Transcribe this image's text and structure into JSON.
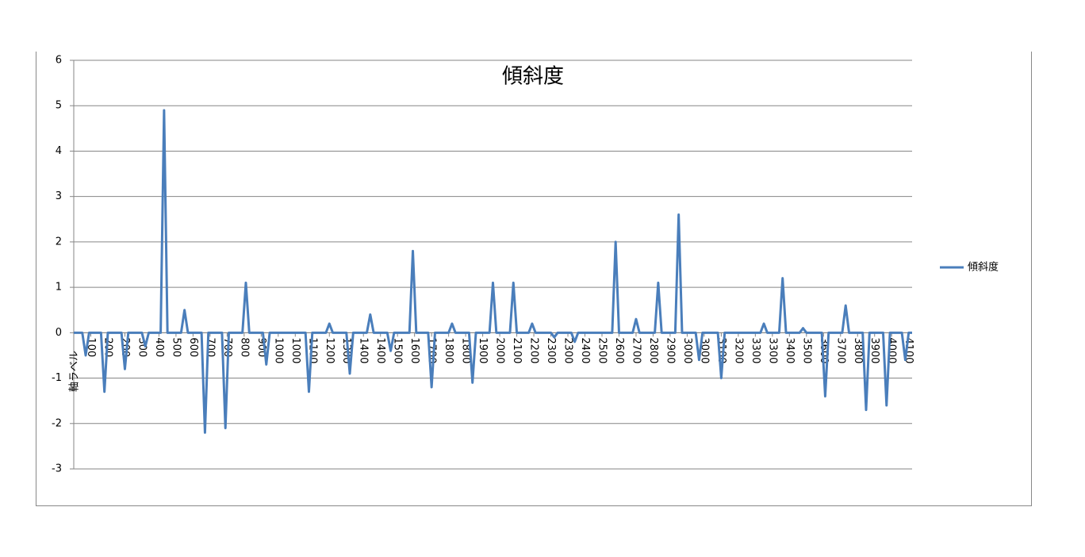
{
  "chart_data": {
    "type": "line",
    "title": "傾斜度",
    "x_label": "軸ラベル",
    "x": [
      0,
      0.5,
      0.7,
      0.9,
      1.6,
      1.8,
      2.0,
      2.8,
      3.0,
      3.2,
      4.0,
      4.2,
      4.4,
      5.1,
      5.3,
      5.5,
      6.3,
      6.5,
      6.7,
      7.5,
      7.7,
      7.9,
      8.7,
      8.9,
      9.1,
      9.9,
      10.1,
      10.3,
      11.1,
      11.3,
      11.5,
      13.6,
      13.8,
      14.0,
      14.8,
      15.0,
      15.2,
      16.0,
      16.2,
      16.4,
      17.2,
      17.4,
      17.6,
      18.4,
      18.6,
      18.8,
      19.7,
      19.9,
      20.1,
      20.8,
      21.0,
      21.2,
      22.0,
      22.2,
      22.4,
      23.2,
      23.4,
      23.6,
      24.4,
      24.6,
      24.8,
      25.6,
      25.8,
      26.0,
      26.7,
      26.9,
      27.1,
      28.0,
      28.2,
      28.4,
      29.2,
      29.4,
      29.6,
      31.6,
      31.8,
      32.0,
      32.8,
      33.0,
      33.2,
      34.1,
      34.3,
      34.5,
      35.3,
      35.5,
      35.7,
      36.5,
      36.7,
      36.9,
      37.8,
      38.0,
      38.2,
      40.3,
      40.5,
      40.7,
      41.4,
      41.6,
      41.8,
      42.6,
      42.8,
      43.0,
      43.9,
      44.1,
      44.3,
      45.1,
      45.3,
      45.5,
      46.3,
      46.5,
      46.7,
      47.5,
      47.7,
      47.9,
      48.6,
      48.8,
      49.0,
      49.2
    ],
    "series": [
      {
        "name": "傾斜度",
        "color": "#4a7ebb",
        "values": [
          0,
          0,
          -0.5,
          0,
          0,
          -1.3,
          0,
          0,
          -0.8,
          0,
          0,
          -0.3,
          0,
          0,
          4.9,
          0,
          0,
          0.5,
          0,
          0,
          -2.2,
          0,
          0,
          -2.1,
          0,
          0,
          1.1,
          0,
          0,
          -0.7,
          0,
          0,
          -1.3,
          0,
          0,
          0.2,
          0,
          0,
          -0.9,
          0,
          0,
          0.4,
          0,
          0,
          -0.4,
          0,
          0,
          1.8,
          0,
          0,
          -1.2,
          0,
          0,
          0.2,
          0,
          0,
          -1.1,
          0,
          0,
          1.1,
          0,
          0,
          1.1,
          0,
          0,
          0.2,
          0,
          0,
          -0.1,
          0,
          0,
          -0.2,
          0,
          0,
          2.0,
          0,
          0,
          0.3,
          0,
          0,
          1.1,
          0,
          0,
          2.6,
          0,
          0,
          -0.6,
          0,
          0,
          -1.0,
          0,
          0,
          0.2,
          0,
          0,
          1.2,
          0,
          0,
          0.1,
          0,
          0,
          -1.4,
          0,
          0,
          0.6,
          0,
          0,
          -1.7,
          0,
          0,
          -1.6,
          0,
          0,
          -0.6,
          0,
          0
        ]
      }
    ],
    "xlim": [
      0,
      49.2
    ],
    "xticks": [
      {
        "value": 1,
        "label": "100"
      },
      {
        "value": 2,
        "label": "200"
      },
      {
        "value": 3,
        "label": "200"
      },
      {
        "value": 4,
        "label": "300"
      },
      {
        "value": 5,
        "label": "400"
      },
      {
        "value": 6,
        "label": "500"
      },
      {
        "value": 7,
        "label": "600"
      },
      {
        "value": 8,
        "label": "700"
      },
      {
        "value": 9,
        "label": "700"
      },
      {
        "value": 10,
        "label": "800"
      },
      {
        "value": 11,
        "label": "900"
      },
      {
        "value": 12,
        "label": "1000"
      },
      {
        "value": 13,
        "label": "1000"
      },
      {
        "value": 14,
        "label": "1100"
      },
      {
        "value": 15,
        "label": "1200"
      },
      {
        "value": 16,
        "label": "1300"
      },
      {
        "value": 17,
        "label": "1400"
      },
      {
        "value": 18,
        "label": "1400"
      },
      {
        "value": 19,
        "label": "1500"
      },
      {
        "value": 20,
        "label": "1600"
      },
      {
        "value": 21,
        "label": "1700"
      },
      {
        "value": 22,
        "label": "1800"
      },
      {
        "value": 23,
        "label": "1800"
      },
      {
        "value": 24,
        "label": "1900"
      },
      {
        "value": 25,
        "label": "2000"
      },
      {
        "value": 26,
        "label": "2100"
      },
      {
        "value": 27,
        "label": "2200"
      },
      {
        "value": 28,
        "label": "2300"
      },
      {
        "value": 29,
        "label": "2300"
      },
      {
        "value": 30,
        "label": "2400"
      },
      {
        "value": 31,
        "label": "2500"
      },
      {
        "value": 32,
        "label": "2600"
      },
      {
        "value": 33,
        "label": "2700"
      },
      {
        "value": 34,
        "label": "2800"
      },
      {
        "value": 35,
        "label": "2900"
      },
      {
        "value": 36,
        "label": "3000"
      },
      {
        "value": 37,
        "label": "3000"
      },
      {
        "value": 38,
        "label": "3100"
      },
      {
        "value": 39,
        "label": "3200"
      },
      {
        "value": 40,
        "label": "3300"
      },
      {
        "value": 41,
        "label": "3300"
      },
      {
        "value": 42,
        "label": "3400"
      },
      {
        "value": 43,
        "label": "3500"
      },
      {
        "value": 44,
        "label": "3600"
      },
      {
        "value": 45,
        "label": "3700"
      },
      {
        "value": 46,
        "label": "3800"
      },
      {
        "value": 47,
        "label": "3900"
      },
      {
        "value": 48,
        "label": "4000"
      },
      {
        "value": 49,
        "label": "4100"
      }
    ],
    "ylim": [
      -3,
      6
    ],
    "yticks": [
      -3,
      -2,
      -1,
      0,
      1,
      2,
      3,
      4,
      5,
      6
    ],
    "grid": true,
    "legend": "right"
  }
}
